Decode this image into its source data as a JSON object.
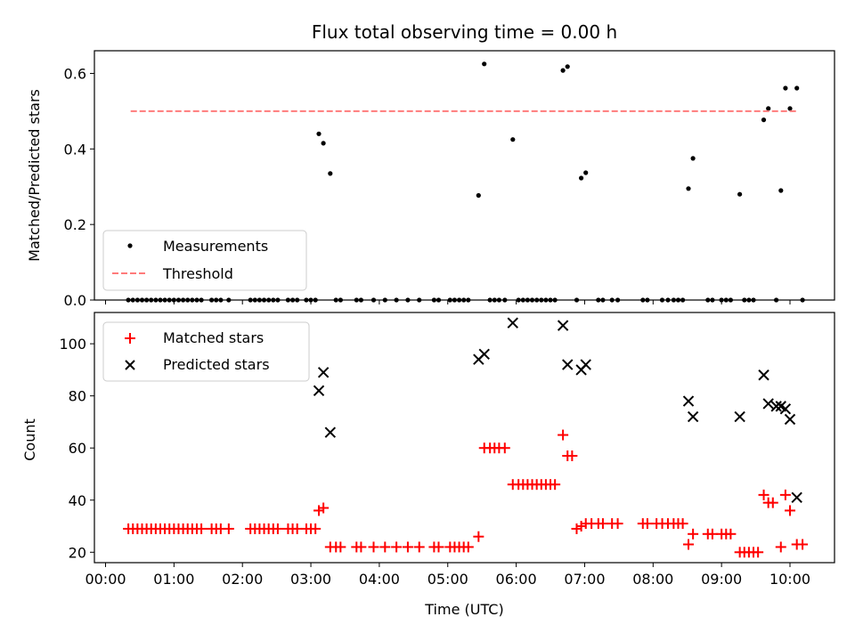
{
  "chart_data": [
    {
      "type": "scatter",
      "title": "Flux total observing time = 0.00 h",
      "xlabel": "",
      "ylabel": "Matched/Predicted stars",
      "xlim": [
        "00:00",
        "10:40"
      ],
      "ylim": [
        0,
        0.66
      ],
      "yticks": [
        0.0,
        0.2,
        0.4,
        0.6
      ],
      "ytick_labels": [
        "0.0",
        "0.2",
        "0.4",
        "0.6"
      ],
      "x_tick_labels_shown": false,
      "legend": {
        "position": "lower-left",
        "entries": [
          "Measurements",
          "Threshold"
        ]
      },
      "grid": false,
      "series": [
        {
          "name": "Measurements",
          "color": "#000000",
          "marker": "dot",
          "points": [
            [
              "03:07",
              0.44
            ],
            [
              "03:11",
              0.415
            ],
            [
              "03:17",
              0.335
            ],
            [
              "05:27",
              0.277
            ],
            [
              "05:32",
              0.625
            ],
            [
              "05:57",
              0.425
            ],
            [
              "06:41",
              0.608
            ],
            [
              "06:45",
              0.618
            ],
            [
              "06:57",
              0.323
            ],
            [
              "07:01",
              0.337
            ],
            [
              "08:31",
              0.295
            ],
            [
              "08:35",
              0.375
            ],
            [
              "09:16",
              0.28
            ],
            [
              "09:37",
              0.477
            ],
            [
              "09:41",
              0.507
            ],
            [
              "09:52",
              0.29
            ],
            [
              "09:56",
              0.561
            ],
            [
              "10:00",
              0.507
            ],
            [
              "10:06",
              0.561
            ],
            [
              "00:20",
              0
            ],
            [
              "00:24",
              0
            ],
            [
              "00:28",
              0
            ],
            [
              "00:32",
              0
            ],
            [
              "00:36",
              0
            ],
            [
              "00:40",
              0
            ],
            [
              "00:44",
              0
            ],
            [
              "00:48",
              0
            ],
            [
              "00:52",
              0
            ],
            [
              "00:56",
              0
            ],
            [
              "01:00",
              0
            ],
            [
              "01:04",
              0
            ],
            [
              "01:08",
              0
            ],
            [
              "01:12",
              0
            ],
            [
              "01:16",
              0
            ],
            [
              "01:20",
              0
            ],
            [
              "01:24",
              0
            ],
            [
              "01:33",
              0
            ],
            [
              "01:37",
              0
            ],
            [
              "01:41",
              0
            ],
            [
              "01:48",
              0
            ],
            [
              "02:07",
              0
            ],
            [
              "02:11",
              0
            ],
            [
              "02:15",
              0
            ],
            [
              "02:19",
              0
            ],
            [
              "02:23",
              0
            ],
            [
              "02:27",
              0
            ],
            [
              "02:31",
              0
            ],
            [
              "02:40",
              0
            ],
            [
              "02:44",
              0
            ],
            [
              "02:48",
              0
            ],
            [
              "02:56",
              0
            ],
            [
              "03:00",
              0
            ],
            [
              "03:04",
              0
            ],
            [
              "03:22",
              0
            ],
            [
              "03:26",
              0
            ],
            [
              "03:40",
              0
            ],
            [
              "03:44",
              0
            ],
            [
              "03:55",
              0
            ],
            [
              "04:05",
              0
            ],
            [
              "04:15",
              0
            ],
            [
              "04:25",
              0
            ],
            [
              "04:35",
              0
            ],
            [
              "04:48",
              0
            ],
            [
              "04:52",
              0
            ],
            [
              "05:02",
              0
            ],
            [
              "05:06",
              0
            ],
            [
              "05:10",
              0
            ],
            [
              "05:14",
              0
            ],
            [
              "05:18",
              0
            ],
            [
              "05:37",
              0
            ],
            [
              "05:41",
              0
            ],
            [
              "05:45",
              0
            ],
            [
              "05:50",
              0
            ],
            [
              "06:02",
              0
            ],
            [
              "06:06",
              0
            ],
            [
              "06:10",
              0
            ],
            [
              "06:14",
              0
            ],
            [
              "06:18",
              0
            ],
            [
              "06:22",
              0
            ],
            [
              "06:26",
              0
            ],
            [
              "06:30",
              0
            ],
            [
              "06:34",
              0
            ],
            [
              "06:53",
              0
            ],
            [
              "07:12",
              0
            ],
            [
              "07:16",
              0
            ],
            [
              "07:24",
              0
            ],
            [
              "07:29",
              0
            ],
            [
              "07:51",
              0
            ],
            [
              "07:55",
              0
            ],
            [
              "08:08",
              0
            ],
            [
              "08:13",
              0
            ],
            [
              "08:18",
              0
            ],
            [
              "08:22",
              0
            ],
            [
              "08:26",
              0
            ],
            [
              "08:48",
              0
            ],
            [
              "08:52",
              0
            ],
            [
              "09:00",
              0
            ],
            [
              "09:04",
              0
            ],
            [
              "09:08",
              0
            ],
            [
              "09:20",
              0
            ],
            [
              "09:24",
              0
            ],
            [
              "09:28",
              0
            ],
            [
              "09:48",
              0
            ],
            [
              "10:11",
              0
            ]
          ]
        },
        {
          "name": "Threshold",
          "color": "#ff7b7b",
          "style": "dashed-line",
          "x": [
            "00:22",
            "10:06"
          ],
          "y": [
            0.5,
            0.5
          ]
        }
      ]
    },
    {
      "type": "scatter",
      "title": "",
      "xlabel": "Time (UTC)",
      "ylabel": "Count",
      "xlim": [
        "00:00",
        "10:40"
      ],
      "ylim": [
        16,
        112
      ],
      "yticks": [
        20,
        40,
        60,
        80,
        100
      ],
      "ytick_labels": [
        "20",
        "40",
        "60",
        "80",
        "100"
      ],
      "xticks": [
        "00:00",
        "01:00",
        "02:00",
        "03:00",
        "04:00",
        "05:00",
        "06:00",
        "07:00",
        "08:00",
        "09:00",
        "10:00"
      ],
      "xtick_labels": [
        "00:00",
        "01:00",
        "02:00",
        "03:00",
        "04:00",
        "05:00",
        "06:00",
        "07:00",
        "08:00",
        "09:00",
        "10:00"
      ],
      "legend": {
        "position": "upper-left",
        "entries": [
          "Matched stars",
          "Predicted stars"
        ]
      },
      "grid": false,
      "series": [
        {
          "name": "Matched stars",
          "color": "#ff0000",
          "marker": "plus",
          "points": [
            [
              "00:20",
              29
            ],
            [
              "00:24",
              29
            ],
            [
              "00:28",
              29
            ],
            [
              "00:32",
              29
            ],
            [
              "00:36",
              29
            ],
            [
              "00:40",
              29
            ],
            [
              "00:44",
              29
            ],
            [
              "00:48",
              29
            ],
            [
              "00:52",
              29
            ],
            [
              "00:56",
              29
            ],
            [
              "01:00",
              29
            ],
            [
              "01:04",
              29
            ],
            [
              "01:08",
              29
            ],
            [
              "01:12",
              29
            ],
            [
              "01:16",
              29
            ],
            [
              "01:20",
              29
            ],
            [
              "01:24",
              29
            ],
            [
              "01:33",
              29
            ],
            [
              "01:37",
              29
            ],
            [
              "01:41",
              29
            ],
            [
              "01:48",
              29
            ],
            [
              "02:07",
              29
            ],
            [
              "02:11",
              29
            ],
            [
              "02:15",
              29
            ],
            [
              "02:19",
              29
            ],
            [
              "02:23",
              29
            ],
            [
              "02:27",
              29
            ],
            [
              "02:31",
              29
            ],
            [
              "02:40",
              29
            ],
            [
              "02:44",
              29
            ],
            [
              "02:48",
              29
            ],
            [
              "02:56",
              29
            ],
            [
              "03:00",
              29
            ],
            [
              "03:04",
              29
            ],
            [
              "03:07",
              36
            ],
            [
              "03:11",
              37
            ],
            [
              "03:17",
              22
            ],
            [
              "03:22",
              22
            ],
            [
              "03:26",
              22
            ],
            [
              "03:40",
              22
            ],
            [
              "03:44",
              22
            ],
            [
              "03:55",
              22
            ],
            [
              "04:05",
              22
            ],
            [
              "04:15",
              22
            ],
            [
              "04:25",
              22
            ],
            [
              "04:35",
              22
            ],
            [
              "04:48",
              22
            ],
            [
              "04:52",
              22
            ],
            [
              "05:02",
              22
            ],
            [
              "05:06",
              22
            ],
            [
              "05:10",
              22
            ],
            [
              "05:14",
              22
            ],
            [
              "05:18",
              22
            ],
            [
              "05:27",
              26
            ],
            [
              "05:32",
              60
            ],
            [
              "05:37",
              60
            ],
            [
              "05:41",
              60
            ],
            [
              "05:45",
              60
            ],
            [
              "05:50",
              60
            ],
            [
              "05:57",
              46
            ],
            [
              "06:02",
              46
            ],
            [
              "06:06",
              46
            ],
            [
              "06:10",
              46
            ],
            [
              "06:14",
              46
            ],
            [
              "06:18",
              46
            ],
            [
              "06:22",
              46
            ],
            [
              "06:26",
              46
            ],
            [
              "06:30",
              46
            ],
            [
              "06:34",
              46
            ],
            [
              "06:41",
              65
            ],
            [
              "06:45",
              57
            ],
            [
              "06:49",
              57
            ],
            [
              "06:53",
              29
            ],
            [
              "06:57",
              30
            ],
            [
              "07:01",
              31
            ],
            [
              "07:06",
              31
            ],
            [
              "07:12",
              31
            ],
            [
              "07:16",
              31
            ],
            [
              "07:24",
              31
            ],
            [
              "07:29",
              31
            ],
            [
              "07:51",
              31
            ],
            [
              "07:55",
              31
            ],
            [
              "08:03",
              31
            ],
            [
              "08:08",
              31
            ],
            [
              "08:13",
              31
            ],
            [
              "08:18",
              31
            ],
            [
              "08:22",
              31
            ],
            [
              "08:26",
              31
            ],
            [
              "08:31",
              23
            ],
            [
              "08:35",
              27
            ],
            [
              "08:48",
              27
            ],
            [
              "08:52",
              27
            ],
            [
              "09:00",
              27
            ],
            [
              "09:04",
              27
            ],
            [
              "09:08",
              27
            ],
            [
              "09:16",
              20
            ],
            [
              "09:20",
              20
            ],
            [
              "09:24",
              20
            ],
            [
              "09:28",
              20
            ],
            [
              "09:32",
              20
            ],
            [
              "09:37",
              42
            ],
            [
              "09:41",
              39
            ],
            [
              "09:45",
              39
            ],
            [
              "09:52",
              22
            ],
            [
              "09:56",
              42
            ],
            [
              "10:00",
              36
            ],
            [
              "10:06",
              23
            ],
            [
              "10:11",
              23
            ]
          ]
        },
        {
          "name": "Predicted stars",
          "color": "#000000",
          "marker": "x",
          "points": [
            [
              "03:07",
              82
            ],
            [
              "03:11",
              89
            ],
            [
              "03:17",
              66
            ],
            [
              "05:27",
              94
            ],
            [
              "05:32",
              96
            ],
            [
              "05:57",
              108
            ],
            [
              "06:41",
              107
            ],
            [
              "06:45",
              92
            ],
            [
              "06:57",
              90
            ],
            [
              "07:01",
              92
            ],
            [
              "08:31",
              78
            ],
            [
              "08:35",
              72
            ],
            [
              "09:16",
              72
            ],
            [
              "09:37",
              88
            ],
            [
              "09:41",
              77
            ],
            [
              "09:48",
              76
            ],
            [
              "09:52",
              76
            ],
            [
              "09:56",
              75
            ],
            [
              "10:00",
              71
            ],
            [
              "10:06",
              41
            ]
          ]
        }
      ]
    }
  ]
}
